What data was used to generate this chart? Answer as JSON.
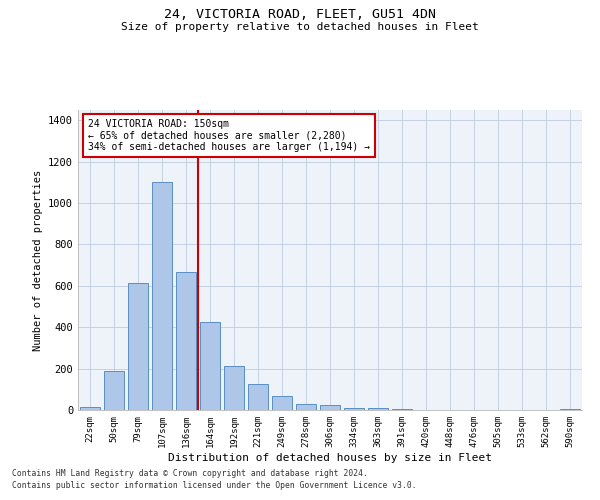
{
  "title1": "24, VICTORIA ROAD, FLEET, GU51 4DN",
  "title2": "Size of property relative to detached houses in Fleet",
  "xlabel": "Distribution of detached houses by size in Fleet",
  "ylabel": "Number of detached properties",
  "categories": [
    "22sqm",
    "50sqm",
    "79sqm",
    "107sqm",
    "136sqm",
    "164sqm",
    "192sqm",
    "221sqm",
    "249sqm",
    "278sqm",
    "306sqm",
    "334sqm",
    "363sqm",
    "391sqm",
    "420sqm",
    "448sqm",
    "476sqm",
    "505sqm",
    "533sqm",
    "562sqm",
    "590sqm"
  ],
  "values": [
    15,
    190,
    615,
    1100,
    665,
    425,
    215,
    125,
    70,
    28,
    22,
    12,
    10,
    5,
    2,
    0,
    0,
    0,
    0,
    0,
    5
  ],
  "bar_color": "#aec6e8",
  "bar_edge_color": "#5a8fc2",
  "vline_color": "#cc0000",
  "annotation_text": "24 VICTORIA ROAD: 150sqm\n← 65% of detached houses are smaller (2,280)\n34% of semi-detached houses are larger (1,194) →",
  "annotation_box_color": "#ffffff",
  "annotation_box_edge_color": "#cc0000",
  "ylim": [
    0,
    1450
  ],
  "yticks": [
    0,
    200,
    400,
    600,
    800,
    1000,
    1200,
    1400
  ],
  "footer1": "Contains HM Land Registry data © Crown copyright and database right 2024.",
  "footer2": "Contains public sector information licensed under the Open Government Licence v3.0.",
  "plot_bg_color": "#eef2f9"
}
